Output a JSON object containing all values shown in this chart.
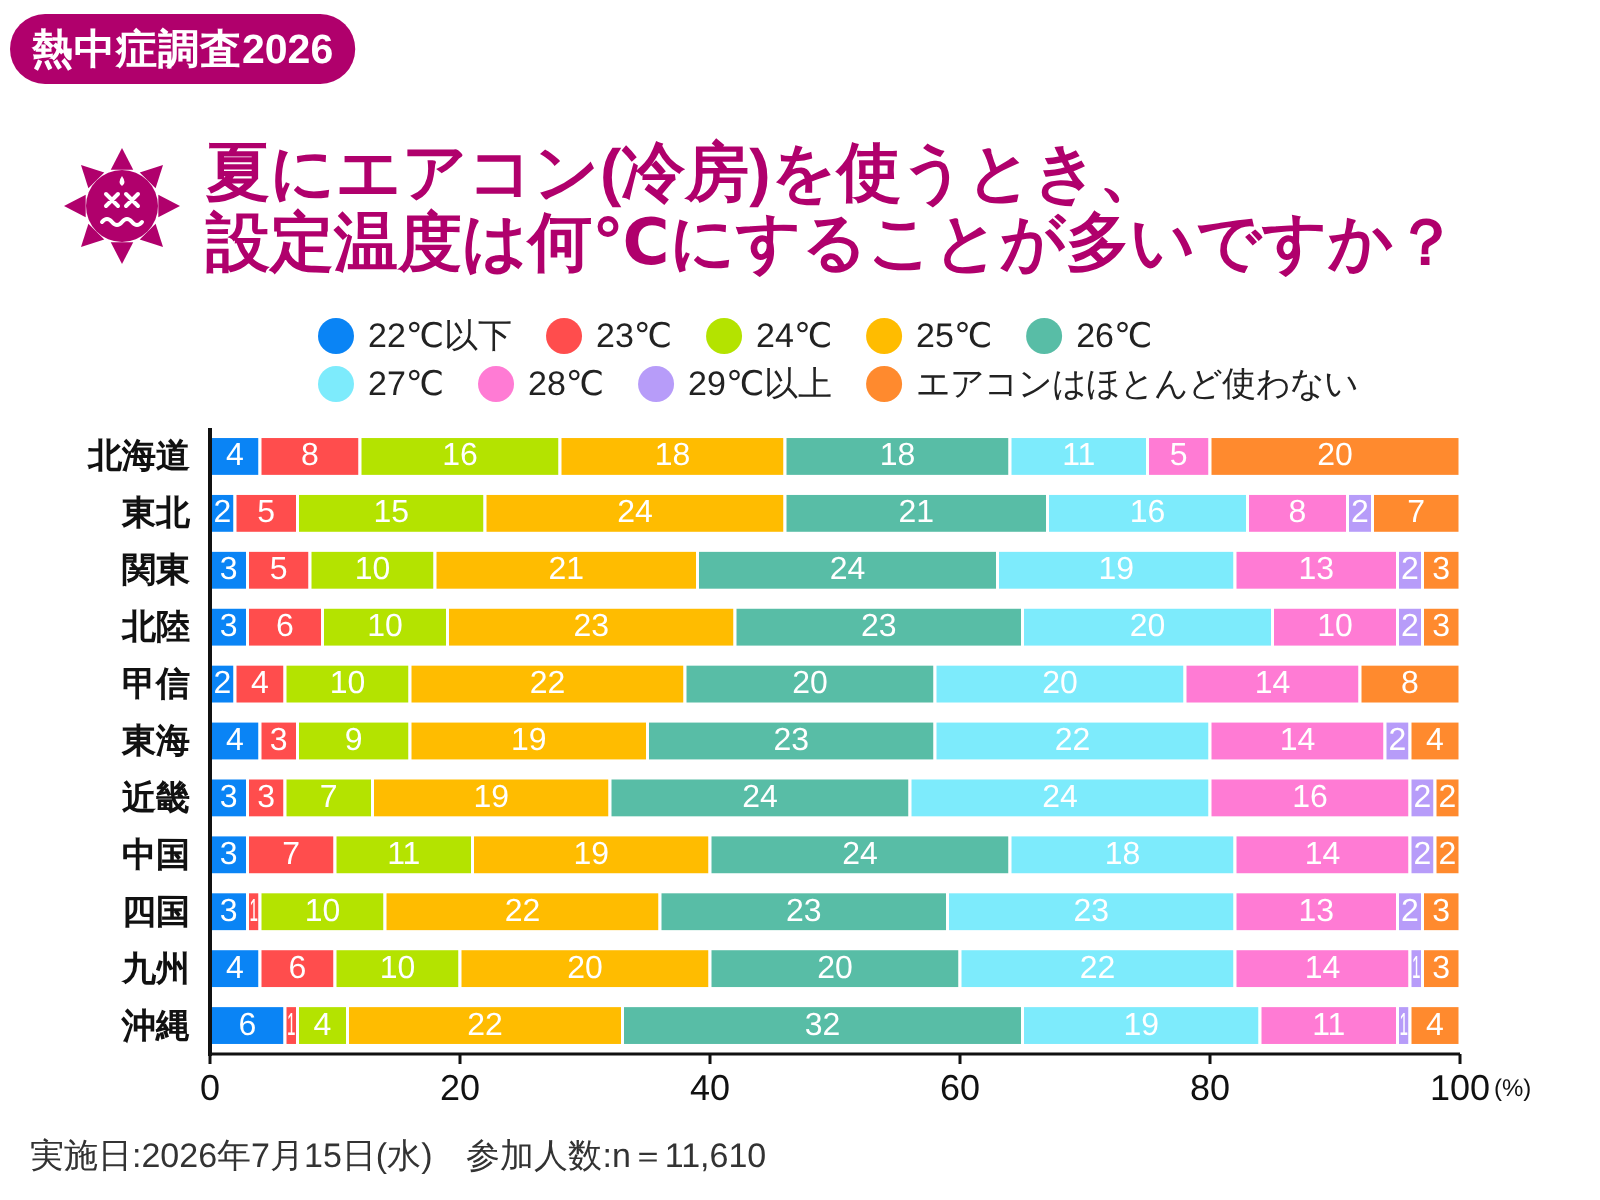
{
  "chart_data": {
    "type": "bar",
    "orientation": "horizontal",
    "stacked": true,
    "data_labels": true,
    "legend": "top",
    "title": "夏にエアコン(冷房)を使うとき、設定温度は何℃にすることが多いですか？",
    "xlabel": "(%)",
    "categories": [
      "北海道",
      "東北",
      "関東",
      "北陸",
      "甲信",
      "東海",
      "近畿",
      "中国",
      "四国",
      "九州",
      "沖縄"
    ],
    "xlim": [
      0,
      100
    ],
    "xticks": [
      0,
      20,
      40,
      60,
      80,
      100
    ],
    "series": [
      {
        "name": "22℃以下",
        "color": "#0a84f5",
        "values": [
          4,
          2,
          3,
          3,
          2,
          4,
          3,
          3,
          3,
          4,
          6
        ]
      },
      {
        "name": "23℃",
        "color": "#ff4d4d",
        "values": [
          8,
          5,
          5,
          6,
          4,
          3,
          3,
          7,
          1,
          6,
          1
        ]
      },
      {
        "name": "24℃",
        "color": "#b4e300",
        "values": [
          16,
          15,
          10,
          10,
          10,
          9,
          7,
          11,
          10,
          10,
          4
        ]
      },
      {
        "name": "25℃",
        "color": "#ffbc00",
        "values": [
          18,
          24,
          21,
          23,
          22,
          19,
          19,
          19,
          22,
          20,
          22
        ]
      },
      {
        "name": "26℃",
        "color": "#58bda6",
        "values": [
          18,
          21,
          24,
          23,
          20,
          23,
          24,
          24,
          23,
          20,
          32
        ]
      },
      {
        "name": "27℃",
        "color": "#7debfc",
        "values": [
          11,
          16,
          19,
          20,
          20,
          22,
          24,
          18,
          23,
          22,
          19
        ]
      },
      {
        "name": "28℃",
        "color": "#ff7bd4",
        "values": [
          5,
          8,
          13,
          10,
          14,
          14,
          16,
          14,
          13,
          14,
          11
        ]
      },
      {
        "name": "29℃以上",
        "color": "#b79cf9",
        "values": [
          null,
          2,
          2,
          2,
          null,
          2,
          2,
          2,
          2,
          1,
          1
        ]
      },
      {
        "name": "エアコンはほとんど使わない",
        "color": "#ff8a2e",
        "values": [
          20,
          7,
          3,
          3,
          8,
          4,
          2,
          2,
          3,
          3,
          4
        ]
      }
    ],
    "annotations": [
      "熱中症調査2026",
      "実施日:2026年7月15日(水)　参加人数:n＝11,610"
    ]
  }
}
